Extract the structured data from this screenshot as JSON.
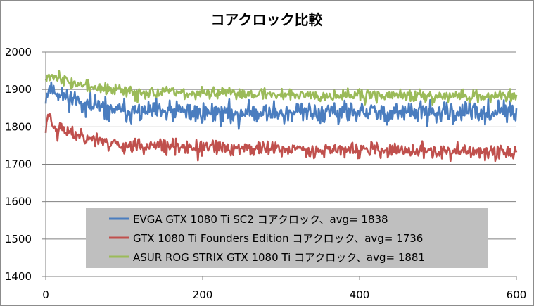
{
  "chart_data": {
    "type": "line",
    "title": "コアクロック比較",
    "xlabel": "",
    "ylabel": "",
    "xlim": [
      0,
      600
    ],
    "ylim": [
      1400,
      2000
    ],
    "xticks": [
      0,
      200,
      400,
      600
    ],
    "yticks": [
      1400,
      1500,
      1600,
      1700,
      1800,
      1900,
      2000
    ],
    "grid": "horizontal",
    "legend_position": "bottom-center",
    "series": [
      {
        "name": "EVGA GTX 1080 Ti SC2 コアクロック、avg= 1838",
        "color": "#4a7dbf",
        "start": 1880,
        "end": 1838,
        "mean": 1838,
        "noise": 22,
        "seed": 11,
        "keypoints": [
          [
            0,
            1880
          ],
          [
            5,
            1905
          ],
          [
            20,
            1885
          ],
          [
            60,
            1855
          ],
          [
            100,
            1840
          ],
          [
            200,
            1838
          ],
          [
            600,
            1838
          ]
        ]
      },
      {
        "name": "GTX 1080 Ti Founders Edition コアクロック、avg= 1736",
        "color": "#c0504d",
        "start": 1790,
        "end": 1735,
        "mean": 1736,
        "noise": 15,
        "seed": 23,
        "keypoints": [
          [
            0,
            1790
          ],
          [
            3,
            1840
          ],
          [
            10,
            1805
          ],
          [
            30,
            1785
          ],
          [
            60,
            1770
          ],
          [
            100,
            1750
          ],
          [
            200,
            1745
          ],
          [
            400,
            1738
          ],
          [
            600,
            1732
          ]
        ]
      },
      {
        "name": "ASUR ROG STRIX GTX 1080 Ti コアクロック、avg= 1881",
        "color": "#9bbb59",
        "start": 1935,
        "end": 1885,
        "mean": 1881,
        "noise": 12,
        "seed": 37,
        "keypoints": [
          [
            0,
            1935
          ],
          [
            10,
            1940
          ],
          [
            30,
            1920
          ],
          [
            60,
            1905
          ],
          [
            100,
            1895
          ],
          [
            200,
            1890
          ],
          [
            400,
            1885
          ],
          [
            600,
            1882
          ]
        ]
      }
    ],
    "legend_labels": [
      "EVGA GTX 1080 Ti SC2 コアクロック、avg= 1838",
      "GTX 1080 Ti Founders Edition コアクロック、avg= 1736",
      "ASUR ROG STRIX GTX 1080 Ti コアクロック、avg= 1881"
    ],
    "colors": {
      "axis": "#808080",
      "grid": "#808080",
      "legend_bg": "#bfbfbf"
    }
  }
}
